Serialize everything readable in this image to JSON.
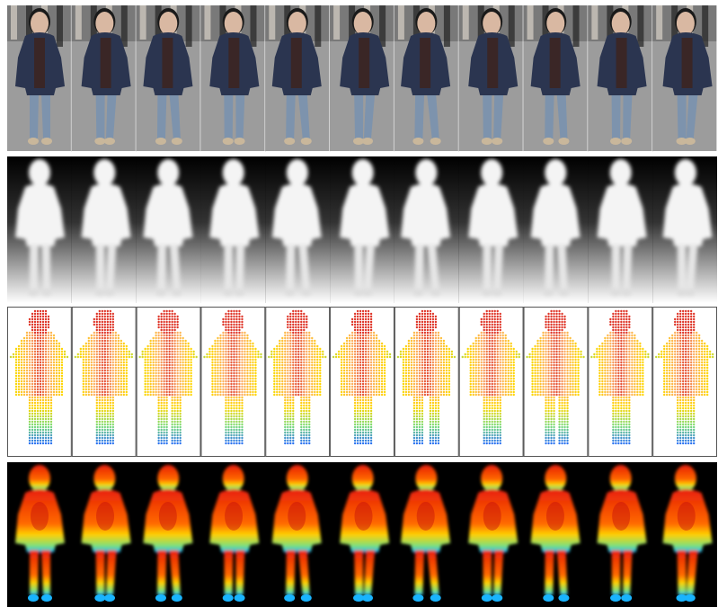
{
  "figure": {
    "frame_count": 11,
    "rows": [
      {
        "name": "rgb-frames",
        "kind": "rgb",
        "description_colors": {
          "pavement": "#9c9c9c",
          "coat": "#2b3550",
          "jeans": "#7d93ad",
          "shoes": "#c9b79b",
          "skin": "#d9b8a2",
          "hair": "#1a1a1a",
          "sweater": "#3a2626"
        }
      },
      {
        "name": "depth-frames",
        "kind": "depth",
        "description_colors": {
          "body": "#f4f4f4",
          "background_top": "#000000",
          "background_bottom": "#ffffff"
        }
      },
      {
        "name": "point-cloud-frames",
        "kind": "pointcloud",
        "description_colors": {
          "near": "#d7191c",
          "mid": "#ffd700",
          "far": "#2166ff",
          "background": "#ffffff",
          "border": "#555555"
        }
      },
      {
        "name": "heatmap-frames",
        "kind": "heatmap",
        "description_colors": {
          "near": "#e8200a",
          "mid": "#ffd000",
          "far": "#19b4ff",
          "background": "#000000"
        }
      }
    ],
    "pose_sway": [
      0,
      0.6,
      -0.4,
      0.3,
      -0.5,
      0.7,
      -0.6,
      0.5,
      -0.3,
      0.4,
      0.8
    ]
  }
}
